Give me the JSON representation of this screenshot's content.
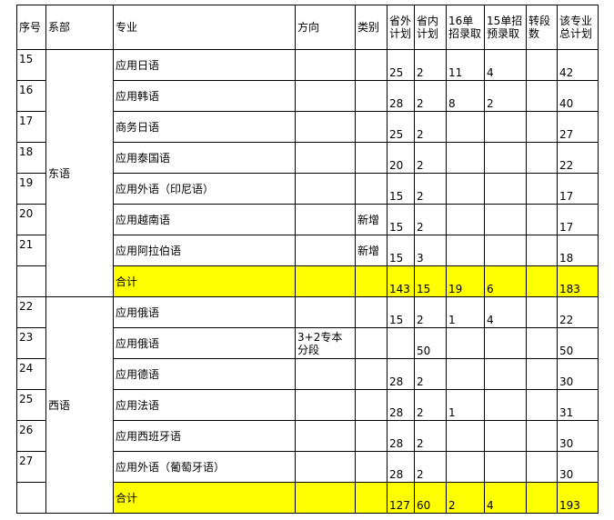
{
  "headers": [
    "序号",
    "系部",
    "专业",
    "方向",
    "类别",
    "省外计划",
    "省内计划",
    "16单招录取",
    "15单招预录取",
    "转段数",
    "该专业总计划"
  ],
  "groups": [
    {
      "dept": "东语",
      "rows": [
        {
          "no": "15",
          "major": "应用日语",
          "dir": "",
          "type": "",
          "out": "25",
          "in": "2",
          "u16": "11",
          "u15": "4",
          "zd": "",
          "total": "42"
        },
        {
          "no": "16",
          "major": "应用韩语",
          "dir": "",
          "type": "",
          "out": "28",
          "in": "2",
          "u16": "8",
          "u15": "2",
          "zd": "",
          "total": "40"
        },
        {
          "no": "17",
          "major": "商务日语",
          "dir": "",
          "type": "",
          "out": "25",
          "in": "2",
          "u16": "",
          "u15": "",
          "zd": "",
          "total": "27"
        },
        {
          "no": "18",
          "major": "应用泰国语",
          "dir": "",
          "type": "",
          "out": "20",
          "in": "2",
          "u16": "",
          "u15": "",
          "zd": "",
          "total": "22"
        },
        {
          "no": "19",
          "major": "应用外语（印尼语）",
          "dir": "",
          "type": "",
          "out": "15",
          "in": "2",
          "u16": "",
          "u15": "",
          "zd": "",
          "total": "17"
        },
        {
          "no": "20",
          "major": "应用越南语",
          "dir": "",
          "type": "新增",
          "out": "15",
          "in": "2",
          "u16": "",
          "u15": "",
          "zd": "",
          "total": "17"
        },
        {
          "no": "21",
          "major": "应用阿拉伯语",
          "dir": "",
          "type": "新增",
          "out": "15",
          "in": "3",
          "u16": "",
          "u15": "",
          "zd": "",
          "total": "18"
        }
      ],
      "sum": {
        "label": "合计",
        "out": "143",
        "in": "15",
        "u16": "19",
        "u15": "6",
        "zd": "",
        "total": "183"
      }
    },
    {
      "dept": "西语",
      "rows": [
        {
          "no": "22",
          "major": "应用俄语",
          "dir": "",
          "type": "",
          "out": "15",
          "in": "2",
          "u16": "1",
          "u15": "4",
          "zd": "",
          "total": "22"
        },
        {
          "no": "23",
          "major": "应用俄语",
          "dir": "3+2专本分段",
          "type": "",
          "out": "",
          "in": "50",
          "u16": "",
          "u15": "",
          "zd": "",
          "total": "50"
        },
        {
          "no": "24",
          "major": "应用德语",
          "dir": "",
          "type": "",
          "out": "28",
          "in": "2",
          "u16": "",
          "u15": "",
          "zd": "",
          "total": "30"
        },
        {
          "no": "25",
          "major": "应用法语",
          "dir": "",
          "type": "",
          "out": "28",
          "in": "2",
          "u16": "1",
          "u15": "",
          "zd": "",
          "total": "31"
        },
        {
          "no": "26",
          "major": "应用西班牙语",
          "dir": "",
          "type": "",
          "out": "28",
          "in": "2",
          "u16": "",
          "u15": "",
          "zd": "",
          "total": "30"
        },
        {
          "no": "27",
          "major": "应用外语（葡萄牙语）",
          "dir": "",
          "type": "",
          "out": "28",
          "in": "2",
          "u16": "",
          "u15": "",
          "zd": "",
          "total": "30"
        }
      ],
      "sum": {
        "label": "合计",
        "out": "127",
        "in": "60",
        "u16": "2",
        "u15": "4",
        "zd": "",
        "total": "193"
      }
    }
  ],
  "colors": {
    "highlight": "#ffff00"
  }
}
